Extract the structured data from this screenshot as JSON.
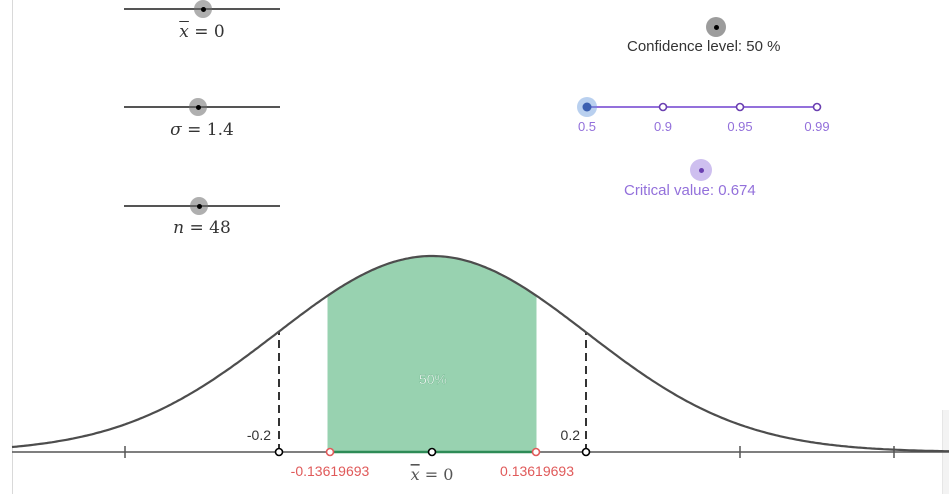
{
  "sliders": {
    "mean": {
      "symbol": "x",
      "value_text": " = 0",
      "value": 0
    },
    "sigma": {
      "symbol": "σ",
      "value_text": " = 1.4",
      "value": 1.4
    },
    "n": {
      "symbol": "n",
      "value_text": " = 48",
      "value": 48
    }
  },
  "confidence": {
    "label": "Confidence level: 50 %",
    "options": [
      "0.5",
      "0.9",
      "0.95",
      "0.99"
    ],
    "selected": "0.5"
  },
  "critical": {
    "label": "Critical value: 0.674"
  },
  "plot": {
    "area_label": "50%",
    "left_bound_label": "-0.2",
    "right_bound_label": "0.2",
    "lower_ci_label": "-0.13619693",
    "upper_ci_label": "0.13619693",
    "center_symbol": "x",
    "center_value_text": " = 0"
  },
  "chart_data": {
    "type": "area",
    "distribution": "normal",
    "mean": 0,
    "sigma": 1.4,
    "n": 48,
    "standard_error": 0.2021,
    "shaded_interval": [
      -0.13619693,
      0.13619693
    ],
    "shaded_percent": 50,
    "marked_points": [
      -0.2,
      0.2
    ],
    "x_range": [
      -0.6,
      0.66
    ],
    "colors": {
      "curve": "#4d4d4d",
      "fill": "#98d2b0",
      "ci": "#e05a5a",
      "accent": "#9370DB"
    }
  }
}
